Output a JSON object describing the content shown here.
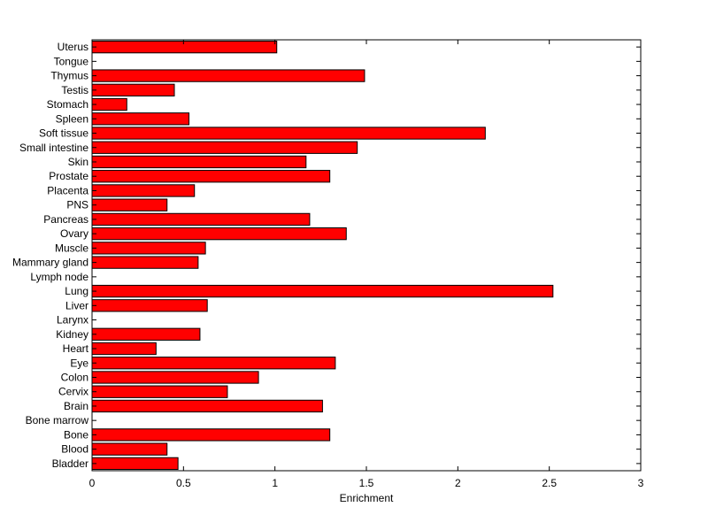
{
  "chart_data": {
    "type": "bar",
    "orientation": "horizontal",
    "title": "",
    "xlabel": "Enrichment",
    "ylabel": "",
    "xlim": [
      0,
      3
    ],
    "xticks": [
      "0",
      "0.5",
      "1",
      "1.5",
      "2",
      "2.5",
      "3"
    ],
    "grid": false,
    "legend": "none",
    "colors": {
      "bar_fill": "#ff0000",
      "bar_edge": "#000000",
      "axes": "#000000"
    },
    "categories": [
      "Uterus",
      "Tongue",
      "Thymus",
      "Testis",
      "Stomach",
      "Spleen",
      "Soft tissue",
      "Small intestine",
      "Skin",
      "Prostate",
      "Placenta",
      "PNS",
      "Pancreas",
      "Ovary",
      "Muscle",
      "Mammary gland",
      "Lymph node",
      "Lung",
      "Liver",
      "Larynx",
      "Kidney",
      "Heart",
      "Eye",
      "Colon",
      "Cervix",
      "Brain",
      "Bone marrow",
      "Bone",
      "Blood",
      "Bladder"
    ],
    "values": [
      1.01,
      0,
      1.49,
      0.45,
      0.19,
      0.53,
      2.15,
      1.45,
      1.17,
      1.3,
      0.56,
      0.41,
      1.19,
      1.39,
      0.62,
      0.58,
      0,
      2.52,
      0.63,
      0,
      0.59,
      0.35,
      1.33,
      0.91,
      0.74,
      1.26,
      0,
      1.3,
      0.41,
      0.47
    ]
  }
}
